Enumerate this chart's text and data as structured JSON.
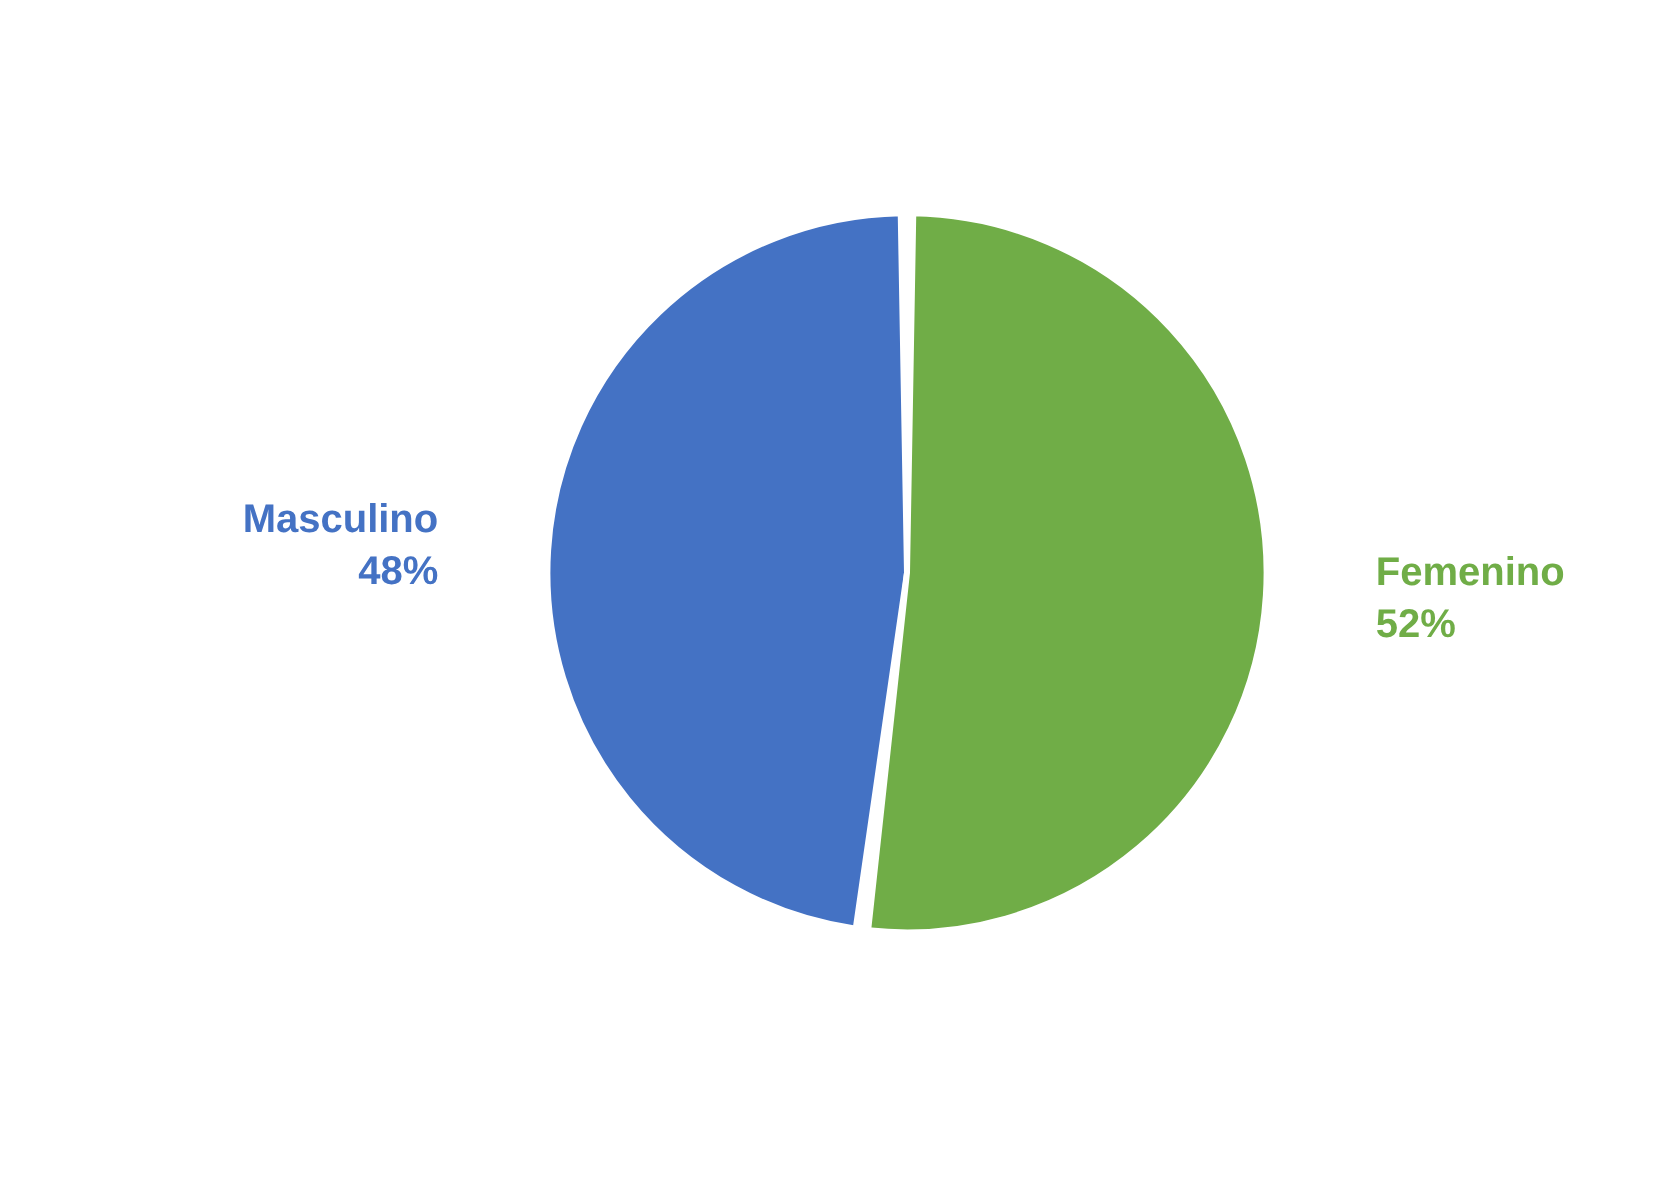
{
  "chart_data": {
    "type": "pie",
    "categories": [
      "Masculino",
      "Femenino"
    ],
    "values": [
      48,
      52
    ],
    "colors": [
      "#4472c4",
      "#70ad47"
    ],
    "value_labels": [
      "48%",
      "52%"
    ],
    "legend": false
  }
}
